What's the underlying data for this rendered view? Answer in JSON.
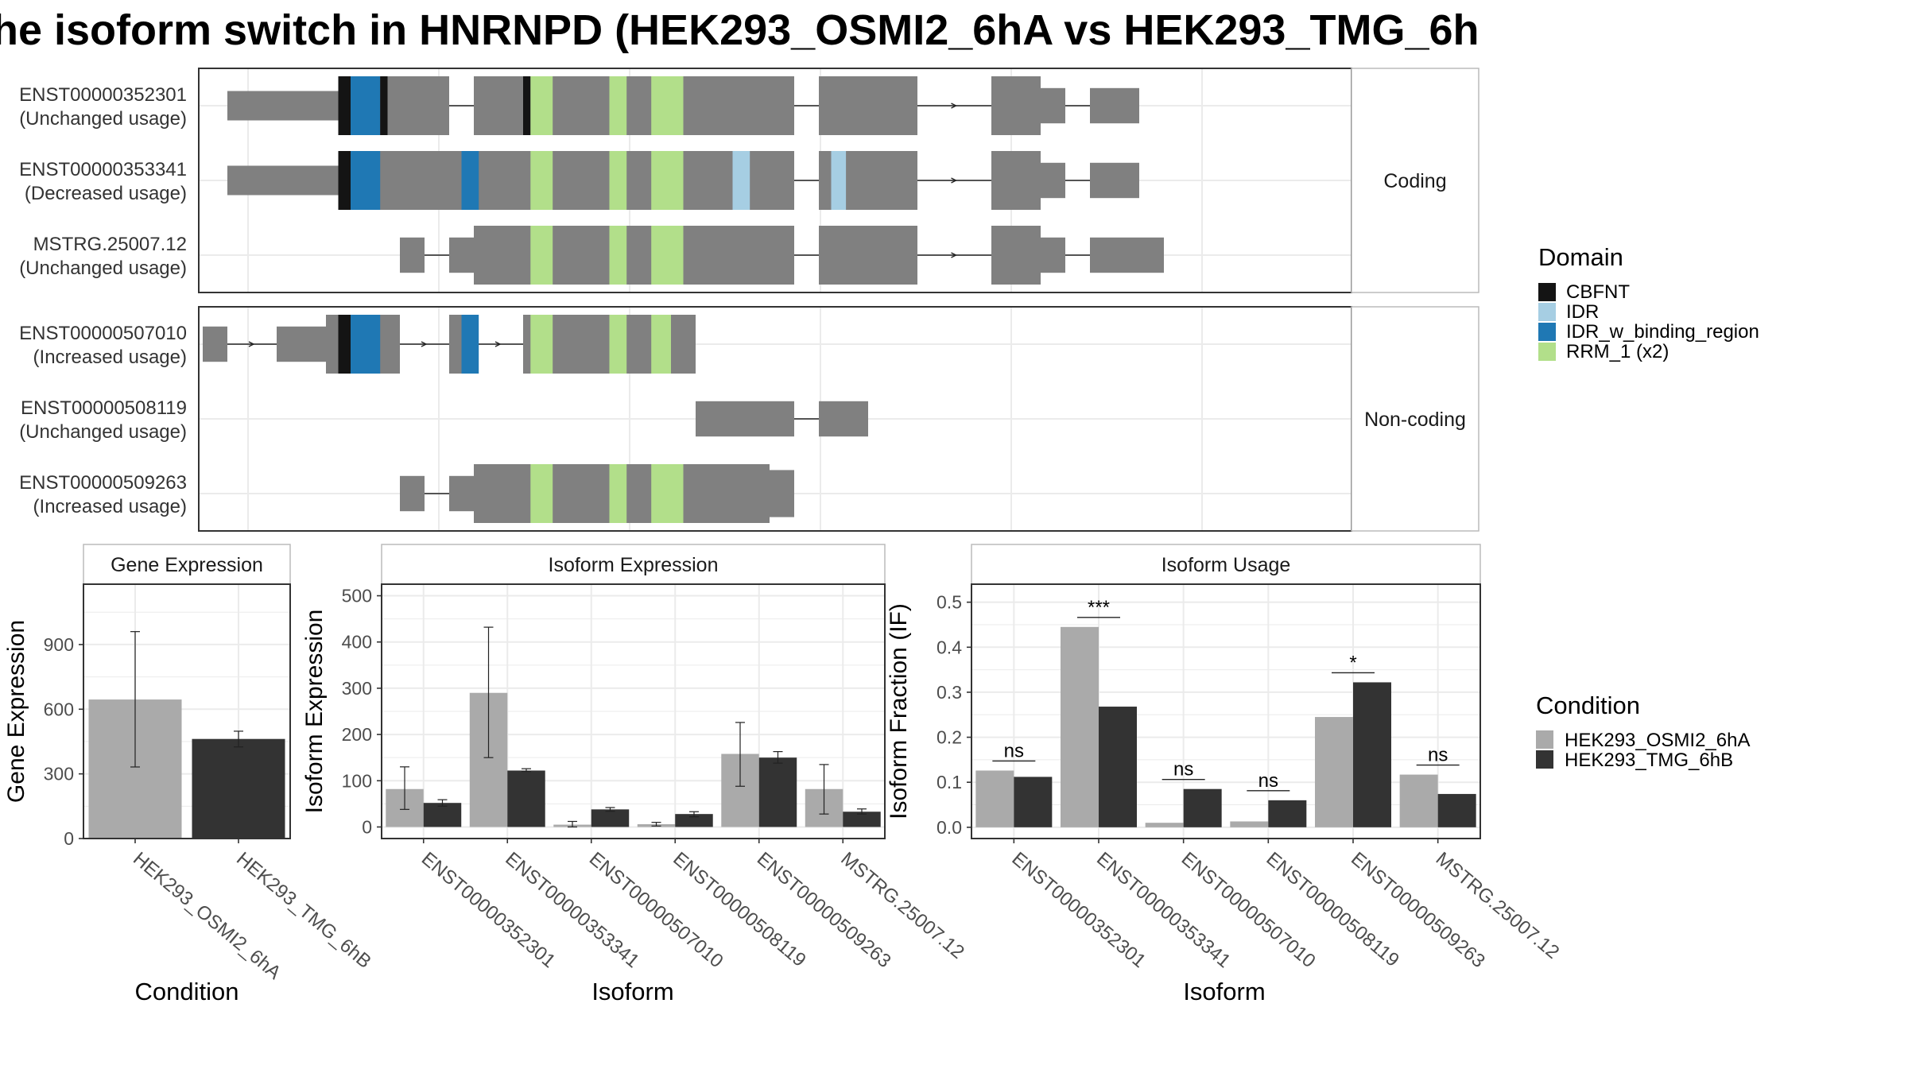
{
  "title": "he isoform switch in HNRNPD (HEK293_OSMI2_6hA vs HEK293_TMG_6h",
  "colors": {
    "CBFNT": "#141414",
    "IDR": "#a6cee3",
    "IDR_w_binding_region": "#1f78b4",
    "RRM_1 (x2)": "#b2df8a",
    "exon": "#808080",
    "condA": "#aaaaaa",
    "condB": "#333333"
  },
  "structure": {
    "groups": [
      {
        "label": "Coding",
        "transcripts": [
          {
            "id": "ENST00000352301",
            "usage": "(Unchanged usage)",
            "exons": [
              [
                -4,
                1,
                0.5
              ],
              [
                1,
                3,
                1
              ],
              [
                3,
                5,
                1
              ],
              [
                6,
                8,
                1
              ],
              [
                8,
                11,
                1
              ],
              [
                11,
                13,
                1
              ],
              [
                13,
                16,
                1
              ],
              [
                16,
                18,
                1
              ],
              [
                18,
                19,
                1
              ],
              [
                20,
                22,
                1
              ],
              [
                22,
                24,
                1
              ],
              [
                27,
                29,
                1
              ],
              [
                29,
                30,
                0.6
              ],
              [
                31,
                33,
                0.6
              ]
            ],
            "domains": [
              [
                0.5,
                1,
                "CBFNT"
              ],
              [
                1,
                2.2,
                "IDR_w_binding_region"
              ],
              [
                2.2,
                2.5,
                "CBFNT"
              ],
              [
                8,
                8.3,
                "CBFNT"
              ],
              [
                8.3,
                9.2,
                "RRM_1 (x2)"
              ],
              [
                11.5,
                12.2,
                "RRM_1 (x2)"
              ],
              [
                13.2,
                14.5,
                "RRM_1 (x2)"
              ]
            ]
          },
          {
            "id": "ENST00000353341",
            "usage": "(Decreased usage)",
            "exons": [
              [
                -4,
                1,
                0.5
              ],
              [
                1,
                3,
                1
              ],
              [
                3,
                5,
                1
              ],
              [
                5,
                6,
                1
              ],
              [
                6,
                8,
                1
              ],
              [
                8,
                11,
                1
              ],
              [
                11,
                13,
                1
              ],
              [
                13,
                16,
                1
              ],
              [
                16,
                18,
                1
              ],
              [
                18,
                19,
                1
              ],
              [
                20,
                22,
                1
              ],
              [
                22,
                24,
                1
              ],
              [
                27,
                29,
                1
              ],
              [
                29,
                30,
                0.6
              ],
              [
                31,
                33,
                0.6
              ]
            ],
            "domains": [
              [
                0.5,
                1,
                "CBFNT"
              ],
              [
                1,
                2.2,
                "IDR_w_binding_region"
              ],
              [
                5.5,
                6.2,
                "IDR_w_binding_region"
              ],
              [
                8.3,
                9.2,
                "RRM_1 (x2)"
              ],
              [
                11.5,
                12.2,
                "RRM_1 (x2)"
              ],
              [
                13.2,
                14.5,
                "RRM_1 (x2)"
              ],
              [
                16.5,
                17.2,
                "IDR"
              ],
              [
                20.5,
                21.1,
                "IDR"
              ]
            ]
          },
          {
            "id": "MSTRG.25007.12",
            "usage": "(Unchanged usage)",
            "exons": [
              [
                3,
                4,
                0.6
              ],
              [
                5,
                6,
                0.6
              ],
              [
                6,
                8,
                1
              ],
              [
                8,
                11,
                1
              ],
              [
                11,
                13,
                1
              ],
              [
                13,
                16,
                1
              ],
              [
                16,
                18,
                1
              ],
              [
                18,
                19,
                1
              ],
              [
                20,
                22,
                1
              ],
              [
                22,
                24,
                1
              ],
              [
                27,
                29,
                1
              ],
              [
                29,
                30,
                0.6
              ],
              [
                31,
                34,
                0.6
              ]
            ],
            "domains": [
              [
                8.3,
                9.2,
                "RRM_1 (x2)"
              ],
              [
                11.5,
                12.2,
                "RRM_1 (x2)"
              ],
              [
                13.2,
                14.5,
                "RRM_1 (x2)"
              ]
            ]
          }
        ]
      },
      {
        "label": "Non-coding",
        "transcripts": [
          {
            "id": "ENST00000507010",
            "usage": "(Increased usage)",
            "exons": [
              [
                -5,
                -4,
                0.6
              ],
              [
                -2,
                0,
                0.6
              ],
              [
                0,
                1,
                1
              ],
              [
                1,
                3,
                1
              ],
              [
                5,
                6,
                1
              ],
              [
                8,
                11,
                1
              ],
              [
                11,
                13,
                1
              ],
              [
                13,
                15,
                1
              ]
            ],
            "domains": [
              [
                0.5,
                1,
                "CBFNT"
              ],
              [
                1,
                2.2,
                "IDR_w_binding_region"
              ],
              [
                5.5,
                6.2,
                "IDR_w_binding_region"
              ],
              [
                8.3,
                9.2,
                "RRM_1 (x2)"
              ],
              [
                11.5,
                12.2,
                "RRM_1 (x2)"
              ],
              [
                13.2,
                14,
                "RRM_1 (x2)"
              ]
            ]
          },
          {
            "id": "ENST00000508119",
            "usage": "(Unchanged usage)",
            "exons": [
              [
                15,
                16,
                0.6
              ],
              [
                16,
                18,
                0.6
              ],
              [
                18,
                19,
                0.6
              ],
              [
                20,
                22,
                0.6
              ]
            ],
            "domains": []
          },
          {
            "id": "ENST00000509263",
            "usage": "(Increased usage)",
            "exons": [
              [
                3,
                4,
                0.6
              ],
              [
                5,
                6,
                0.6
              ],
              [
                6,
                8,
                1
              ],
              [
                8,
                11,
                1
              ],
              [
                11,
                13,
                1
              ],
              [
                13,
                16,
                1
              ],
              [
                16,
                18,
                1
              ],
              [
                18,
                19,
                0.8
              ]
            ],
            "domains": [
              [
                8.3,
                9.2,
                "RRM_1 (x2)"
              ],
              [
                11.5,
                12.2,
                "RRM_1 (x2)"
              ],
              [
                13.2,
                14.5,
                "RRM_1 (x2)"
              ]
            ]
          }
        ]
      }
    ]
  },
  "legend_domain": {
    "title": "Domain",
    "items": [
      "CBFNT",
      "IDR",
      "IDR_w_binding_region",
      "RRM_1 (x2)"
    ]
  },
  "legend_condition": {
    "title": "Condition",
    "items": [
      "HEK293_OSMI2_6hA",
      "HEK293_TMG_6hB"
    ]
  },
  "chart_data": [
    {
      "type": "bar",
      "title": "Gene Expression",
      "xlabel": "Condition",
      "ylabel": "Gene Expression",
      "categories": [
        "HEK293_OSMI2_6hA",
        "HEK293_TMG_6hB"
      ],
      "values": [
        645,
        462
      ],
      "error_low": [
        332,
        425
      ],
      "error_high": [
        960,
        498
      ],
      "ylim": [
        0,
        1180
      ],
      "yticks": [
        0,
        300,
        600,
        900
      ],
      "grid": true
    },
    {
      "type": "bar",
      "title": "Isoform Expression",
      "xlabel": "Isoform",
      "ylabel": "Isoform Expression",
      "categories": [
        "ENST00000352301",
        "ENST00000353341",
        "ENST00000507010",
        "ENST00000508119",
        "ENST00000509263",
        "MSTRG.25007.12"
      ],
      "series": [
        {
          "name": "HEK293_OSMI2_6hA",
          "values": [
            82,
            290,
            5,
            6,
            158,
            82
          ],
          "error_low": [
            38,
            150,
            0,
            2,
            88,
            28
          ],
          "error_high": [
            130,
            432,
            12,
            10,
            226,
            135
          ]
        },
        {
          "name": "HEK293_TMG_6hB",
          "values": [
            52,
            122,
            38,
            28,
            150,
            33
          ],
          "error_low": [
            45,
            120,
            34,
            22,
            138,
            28
          ],
          "error_high": [
            59,
            126,
            42,
            33,
            163,
            39
          ]
        }
      ],
      "ylim": [
        -25,
        525
      ],
      "yticks": [
        0,
        100,
        200,
        300,
        400,
        500
      ],
      "grid": true
    },
    {
      "type": "bar",
      "title": "Isoform Usage",
      "xlabel": "Isoform",
      "ylabel": "Isoform Fraction (IF)",
      "categories": [
        "ENST00000352301",
        "ENST00000353341",
        "ENST00000507010",
        "ENST00000508119",
        "ENST00000509263",
        "MSTRG.25007.12"
      ],
      "series": [
        {
          "name": "HEK293_OSMI2_6hA",
          "values": [
            0.126,
            0.445,
            0.01,
            0.013,
            0.245,
            0.117
          ]
        },
        {
          "name": "HEK293_TMG_6hB",
          "values": [
            0.112,
            0.268,
            0.085,
            0.06,
            0.322,
            0.074
          ]
        }
      ],
      "annotations": [
        "ns",
        "***",
        "ns",
        "ns",
        "*",
        "ns"
      ],
      "ylim": [
        -0.025,
        0.54
      ],
      "yticks": [
        0.0,
        0.1,
        0.2,
        0.3,
        0.4,
        0.5
      ],
      "grid": true
    }
  ]
}
